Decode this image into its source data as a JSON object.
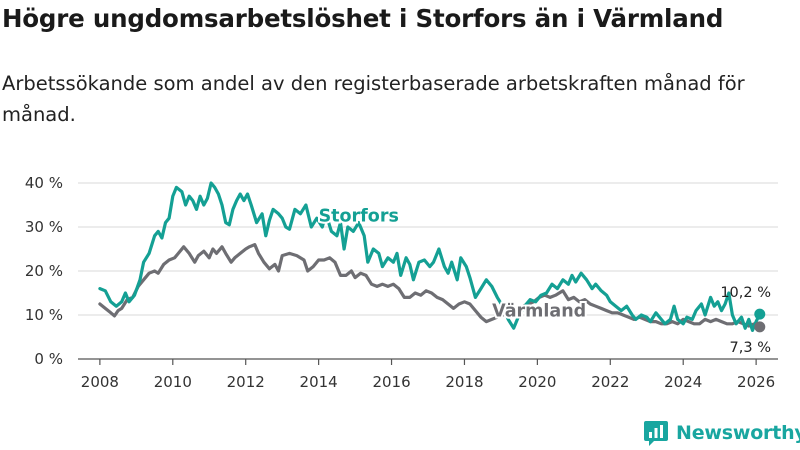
{
  "title": "Högre ungdomsarbetslöshet i Storfors än i Värmland",
  "subtitle": "Arbetssökande som andel av den registerbaserade arbetskraften månad för månad.",
  "brand": {
    "name": "Newsworthy"
  },
  "colors": {
    "storfors": "#14a094",
    "varmland": "#6e6e73",
    "grid": "#d9d9d9",
    "axis": "#555555"
  },
  "chart_data": {
    "type": "line",
    "title": "Högre ungdomsarbetslöshet i Storfors än i Värmland",
    "xlabel": "",
    "ylabel": "",
    "ylim": [
      0,
      40
    ],
    "xlim": [
      2007.4,
      2026.6
    ],
    "x_ticks": [
      2008,
      2010,
      2012,
      2014,
      2016,
      2018,
      2020,
      2022,
      2024,
      2026
    ],
    "y_ticks": [
      {
        "value": 0,
        "label": "0 %"
      },
      {
        "value": 10,
        "label": "10 %"
      },
      {
        "value": 20,
        "label": "20 %"
      },
      {
        "value": 30,
        "label": "30 %"
      },
      {
        "value": 40,
        "label": "40 %"
      }
    ],
    "grid": true,
    "series": [
      {
        "name": "Storfors",
        "label": "Storfors",
        "end_label": "10,2 %",
        "end_value": 10.2,
        "color": "#14a094",
        "points": [
          [
            2008.0,
            16.0
          ],
          [
            2008.15,
            15.5
          ],
          [
            2008.3,
            13.0
          ],
          [
            2008.45,
            12.0
          ],
          [
            2008.6,
            13.0
          ],
          [
            2008.7,
            15.0
          ],
          [
            2008.8,
            13.0
          ],
          [
            2008.95,
            14.5
          ],
          [
            2009.1,
            18.0
          ],
          [
            2009.2,
            22.0
          ],
          [
            2009.35,
            24.0
          ],
          [
            2009.5,
            28.0
          ],
          [
            2009.6,
            29.0
          ],
          [
            2009.7,
            27.5
          ],
          [
            2009.8,
            31.0
          ],
          [
            2009.9,
            32.0
          ],
          [
            2010.0,
            37.0
          ],
          [
            2010.1,
            39.0
          ],
          [
            2010.25,
            38.0
          ],
          [
            2010.35,
            35.0
          ],
          [
            2010.45,
            37.0
          ],
          [
            2010.55,
            36.0
          ],
          [
            2010.65,
            34.0
          ],
          [
            2010.75,
            37.0
          ],
          [
            2010.85,
            35.0
          ],
          [
            2010.95,
            36.5
          ],
          [
            2011.05,
            40.0
          ],
          [
            2011.15,
            39.0
          ],
          [
            2011.25,
            37.5
          ],
          [
            2011.35,
            35.0
          ],
          [
            2011.45,
            31.0
          ],
          [
            2011.55,
            30.5
          ],
          [
            2011.65,
            34.0
          ],
          [
            2011.75,
            36.0
          ],
          [
            2011.85,
            37.5
          ],
          [
            2011.95,
            36.0
          ],
          [
            2012.05,
            37.5
          ],
          [
            2012.15,
            35.0
          ],
          [
            2012.3,
            31.0
          ],
          [
            2012.45,
            33.0
          ],
          [
            2012.55,
            28.0
          ],
          [
            2012.65,
            31.5
          ],
          [
            2012.75,
            34.0
          ],
          [
            2012.9,
            33.0
          ],
          [
            2013.0,
            32.0
          ],
          [
            2013.1,
            30.0
          ],
          [
            2013.2,
            29.5
          ],
          [
            2013.35,
            34.0
          ],
          [
            2013.5,
            33.0
          ],
          [
            2013.65,
            35.0
          ],
          [
            2013.8,
            30.0
          ],
          [
            2013.95,
            32.0
          ],
          [
            2014.1,
            30.0
          ],
          [
            2014.2,
            33.0
          ],
          [
            2014.35,
            29.0
          ],
          [
            2014.5,
            28.0
          ],
          [
            2014.6,
            31.0
          ],
          [
            2014.7,
            25.0
          ],
          [
            2014.8,
            30.0
          ],
          [
            2014.95,
            29.0
          ],
          [
            2015.1,
            31.0
          ],
          [
            2015.25,
            28.0
          ],
          [
            2015.35,
            22.0
          ],
          [
            2015.5,
            25.0
          ],
          [
            2015.65,
            24.0
          ],
          [
            2015.75,
            21.0
          ],
          [
            2015.9,
            23.0
          ],
          [
            2016.05,
            22.0
          ],
          [
            2016.15,
            24.0
          ],
          [
            2016.25,
            19.0
          ],
          [
            2016.4,
            23.0
          ],
          [
            2016.5,
            21.5
          ],
          [
            2016.6,
            18.0
          ],
          [
            2016.75,
            22.0
          ],
          [
            2016.9,
            22.5
          ],
          [
            2017.05,
            21.0
          ],
          [
            2017.15,
            22.0
          ],
          [
            2017.3,
            25.0
          ],
          [
            2017.45,
            21.0
          ],
          [
            2017.55,
            19.5
          ],
          [
            2017.65,
            22.0
          ],
          [
            2017.8,
            18.0
          ],
          [
            2017.9,
            23.0
          ],
          [
            2018.05,
            21.0
          ],
          [
            2018.15,
            18.5
          ],
          [
            2018.3,
            14.0
          ],
          [
            2018.45,
            16.0
          ],
          [
            2018.6,
            18.0
          ],
          [
            2018.75,
            16.5
          ],
          [
            2018.9,
            14.0
          ],
          [
            2019.05,
            12.0
          ],
          [
            2019.2,
            9.0
          ],
          [
            2019.35,
            7.0
          ],
          [
            2019.5,
            10.0
          ],
          [
            2019.65,
            12.0
          ],
          [
            2019.8,
            13.5
          ],
          [
            2019.95,
            13.0
          ],
          [
            2020.1,
            14.5
          ],
          [
            2020.25,
            15.0
          ],
          [
            2020.4,
            17.0
          ],
          [
            2020.55,
            16.0
          ],
          [
            2020.7,
            18.0
          ],
          [
            2020.85,
            17.0
          ],
          [
            2020.95,
            19.0
          ],
          [
            2021.05,
            17.5
          ],
          [
            2021.2,
            19.5
          ],
          [
            2021.35,
            18.0
          ],
          [
            2021.5,
            16.0
          ],
          [
            2021.6,
            17.0
          ],
          [
            2021.75,
            15.5
          ],
          [
            2021.9,
            14.5
          ],
          [
            2022.0,
            13.0
          ],
          [
            2022.15,
            12.0
          ],
          [
            2022.3,
            11.0
          ],
          [
            2022.45,
            12.0
          ],
          [
            2022.6,
            10.0
          ],
          [
            2022.7,
            9.0
          ],
          [
            2022.85,
            10.0
          ],
          [
            2023.0,
            9.5
          ],
          [
            2023.1,
            8.5
          ],
          [
            2023.25,
            10.5
          ],
          [
            2023.4,
            9.0
          ],
          [
            2023.5,
            8.0
          ],
          [
            2023.65,
            9.0
          ],
          [
            2023.75,
            12.0
          ],
          [
            2023.85,
            9.0
          ],
          [
            2024.0,
            8.0
          ],
          [
            2024.1,
            9.5
          ],
          [
            2024.25,
            9.0
          ],
          [
            2024.35,
            11.0
          ],
          [
            2024.5,
            12.5
          ],
          [
            2024.6,
            10.0
          ],
          [
            2024.75,
            14.0
          ],
          [
            2024.85,
            12.0
          ],
          [
            2024.95,
            13.0
          ],
          [
            2025.05,
            11.0
          ],
          [
            2025.15,
            12.5
          ],
          [
            2025.25,
            15.0
          ],
          [
            2025.35,
            10.0
          ],
          [
            2025.45,
            8.0
          ],
          [
            2025.6,
            9.5
          ],
          [
            2025.7,
            7.0
          ],
          [
            2025.8,
            9.0
          ],
          [
            2025.9,
            6.5
          ],
          [
            2026.0,
            8.5
          ],
          [
            2026.1,
            10.2
          ]
        ]
      },
      {
        "name": "Värmland",
        "label": "Värmland",
        "end_label": "7,3 %",
        "end_value": 7.3,
        "color": "#6e6e73",
        "points": [
          [
            2008.0,
            12.5
          ],
          [
            2008.15,
            11.5
          ],
          [
            2008.3,
            10.5
          ],
          [
            2008.4,
            9.8
          ],
          [
            2008.5,
            11.0
          ],
          [
            2008.6,
            11.5
          ],
          [
            2008.75,
            13.5
          ],
          [
            2008.9,
            14.0
          ],
          [
            2009.05,
            16.5
          ],
          [
            2009.2,
            18.0
          ],
          [
            2009.35,
            19.5
          ],
          [
            2009.5,
            20.0
          ],
          [
            2009.6,
            19.5
          ],
          [
            2009.75,
            21.5
          ],
          [
            2009.9,
            22.5
          ],
          [
            2010.05,
            23.0
          ],
          [
            2010.15,
            24.0
          ],
          [
            2010.3,
            25.5
          ],
          [
            2010.45,
            24.0
          ],
          [
            2010.6,
            22.0
          ],
          [
            2010.7,
            23.5
          ],
          [
            2010.85,
            24.5
          ],
          [
            2011.0,
            23.0
          ],
          [
            2011.1,
            25.0
          ],
          [
            2011.2,
            24.0
          ],
          [
            2011.35,
            25.5
          ],
          [
            2011.45,
            24.0
          ],
          [
            2011.6,
            22.0
          ],
          [
            2011.7,
            23.0
          ],
          [
            2011.85,
            24.0
          ],
          [
            2012.0,
            25.0
          ],
          [
            2012.1,
            25.5
          ],
          [
            2012.25,
            26.0
          ],
          [
            2012.35,
            24.0
          ],
          [
            2012.5,
            22.0
          ],
          [
            2012.65,
            20.5
          ],
          [
            2012.8,
            21.5
          ],
          [
            2012.9,
            20.0
          ],
          [
            2013.0,
            23.5
          ],
          [
            2013.2,
            24.0
          ],
          [
            2013.4,
            23.5
          ],
          [
            2013.6,
            22.5
          ],
          [
            2013.7,
            20.0
          ],
          [
            2013.85,
            21.0
          ],
          [
            2014.0,
            22.5
          ],
          [
            2014.15,
            22.5
          ],
          [
            2014.3,
            23.0
          ],
          [
            2014.45,
            22.0
          ],
          [
            2014.6,
            19.0
          ],
          [
            2014.75,
            19.0
          ],
          [
            2014.9,
            20.0
          ],
          [
            2015.0,
            18.5
          ],
          [
            2015.15,
            19.5
          ],
          [
            2015.3,
            19.0
          ],
          [
            2015.45,
            17.0
          ],
          [
            2015.6,
            16.5
          ],
          [
            2015.75,
            17.0
          ],
          [
            2015.9,
            16.5
          ],
          [
            2016.05,
            17.0
          ],
          [
            2016.2,
            16.0
          ],
          [
            2016.35,
            14.0
          ],
          [
            2016.5,
            14.0
          ],
          [
            2016.65,
            15.0
          ],
          [
            2016.8,
            14.5
          ],
          [
            2016.95,
            15.5
          ],
          [
            2017.1,
            15.0
          ],
          [
            2017.25,
            14.0
          ],
          [
            2017.4,
            13.5
          ],
          [
            2017.55,
            12.5
          ],
          [
            2017.7,
            11.5
          ],
          [
            2017.85,
            12.5
          ],
          [
            2018.0,
            13.0
          ],
          [
            2018.15,
            12.5
          ],
          [
            2018.3,
            11.0
          ],
          [
            2018.45,
            9.5
          ],
          [
            2018.6,
            8.5
          ],
          [
            2018.75,
            9.0
          ],
          [
            2018.9,
            9.5
          ],
          [
            2019.05,
            10.0
          ],
          [
            2019.2,
            10.5
          ],
          [
            2019.35,
            11.0
          ],
          [
            2019.5,
            11.5
          ],
          [
            2019.6,
            12.0
          ],
          [
            2019.75,
            12.5
          ],
          [
            2019.9,
            13.0
          ],
          [
            2020.05,
            14.0
          ],
          [
            2020.2,
            14.5
          ],
          [
            2020.35,
            14.0
          ],
          [
            2020.5,
            14.5
          ],
          [
            2020.7,
            15.5
          ],
          [
            2020.85,
            13.5
          ],
          [
            2021.0,
            14.0
          ],
          [
            2021.15,
            13.0
          ],
          [
            2021.3,
            13.5
          ],
          [
            2021.45,
            12.5
          ],
          [
            2021.6,
            12.0
          ],
          [
            2021.75,
            11.5
          ],
          [
            2021.9,
            11.0
          ],
          [
            2022.05,
            10.5
          ],
          [
            2022.2,
            10.5
          ],
          [
            2022.35,
            10.0
          ],
          [
            2022.5,
            9.5
          ],
          [
            2022.65,
            9.0
          ],
          [
            2022.8,
            9.5
          ],
          [
            2022.95,
            9.0
          ],
          [
            2023.1,
            8.5
          ],
          [
            2023.25,
            8.5
          ],
          [
            2023.4,
            8.0
          ],
          [
            2023.55,
            8.0
          ],
          [
            2023.7,
            8.5
          ],
          [
            2023.85,
            8.0
          ],
          [
            2024.0,
            9.0
          ],
          [
            2024.15,
            8.5
          ],
          [
            2024.3,
            8.0
          ],
          [
            2024.45,
            8.0
          ],
          [
            2024.6,
            9.0
          ],
          [
            2024.75,
            8.5
          ],
          [
            2024.9,
            9.0
          ],
          [
            2025.05,
            8.5
          ],
          [
            2025.2,
            8.0
          ],
          [
            2025.35,
            8.0
          ],
          [
            2025.5,
            8.5
          ],
          [
            2025.65,
            8.0
          ],
          [
            2025.8,
            7.5
          ],
          [
            2025.95,
            8.0
          ],
          [
            2026.1,
            7.3
          ]
        ]
      }
    ]
  }
}
